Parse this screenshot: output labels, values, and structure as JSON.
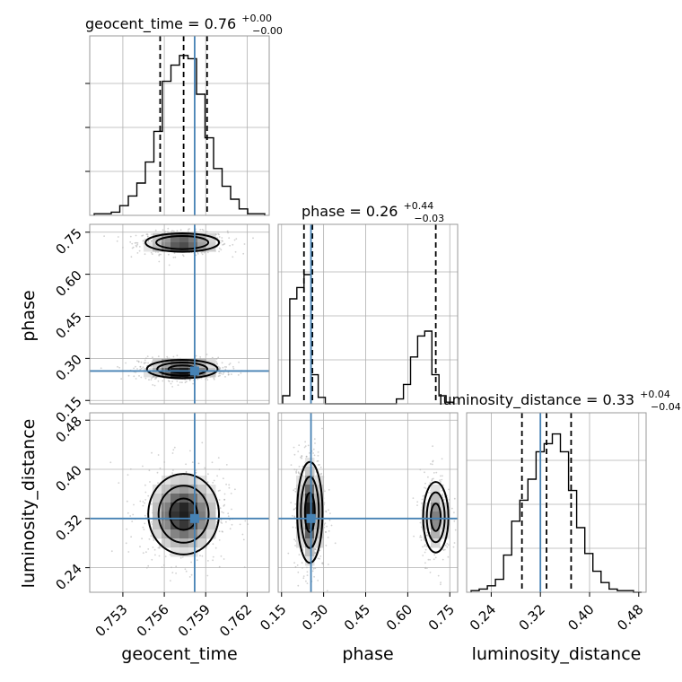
{
  "chart_data": {
    "type": "corner",
    "parameters": [
      "geocent_time",
      "phase",
      "luminosity_distance"
    ],
    "truths": {
      "geocent_time": 0.7582,
      "phase": 0.255,
      "luminosity_distance": 0.32
    },
    "truth_color": "#4682b4",
    "titles": [
      {
        "param": "geocent_time",
        "text": "geocent_time = 0.76",
        "sup": "+0.00",
        "sub": "−0.00"
      },
      {
        "param": "phase",
        "text": "phase = 0.26",
        "sup": "+0.44",
        "sub": "−0.03"
      },
      {
        "param": "luminosity_distance",
        "text": "luminosity_distance = 0.33",
        "sup": "+0.04",
        "sub": "−0.04"
      }
    ],
    "axis_labels": {
      "x": [
        "geocent_time",
        "phase",
        "luminosity_distance"
      ],
      "y": [
        "phase",
        "luminosity_distance"
      ]
    },
    "ticks": {
      "geocent_time": [
        "0.753",
        "0.756",
        "0.759",
        "0.762"
      ],
      "phase": [
        "0.15",
        "0.30",
        "0.45",
        "0.60",
        "0.75"
      ],
      "luminosity_distance": [
        "0.24",
        "0.32",
        "0.40",
        "0.48"
      ]
    },
    "ranges": {
      "geocent_time": [
        0.7506,
        0.7636
      ],
      "phase": [
        0.138,
        0.778
      ],
      "luminosity_distance": [
        0.2,
        0.492
      ]
    },
    "quantiles": {
      "geocent_time": [
        0.7557,
        0.7574,
        0.7591
      ],
      "phase": [
        0.23,
        0.26,
        0.7
      ],
      "luminosity_distance": [
        0.29,
        0.33,
        0.37
      ]
    },
    "histograms": {
      "geocent_time": [
        0.01,
        0.01,
        0.02,
        0.06,
        0.12,
        0.2,
        0.33,
        0.52,
        0.83,
        0.93,
        0.99,
        0.97,
        0.75,
        0.48,
        0.29,
        0.18,
        0.1,
        0.04,
        0.01,
        0.01
      ],
      "phase": [
        0.05,
        0.65,
        0.72,
        0.8,
        0.18,
        0.04,
        0,
        0,
        0,
        0,
        0,
        0,
        0,
        0,
        0,
        0,
        0.03,
        0.12,
        0.29,
        0.42,
        0.45,
        0.18,
        0.05,
        0.01
      ],
      "luminosity_distance": [
        0.01,
        0.02,
        0.04,
        0.08,
        0.23,
        0.44,
        0.57,
        0.7,
        0.87,
        0.92,
        0.98,
        0.87,
        0.63,
        0.4,
        0.24,
        0.13,
        0.06,
        0.02,
        0.01,
        0.01,
        0
      ]
    },
    "blobs": [
      {
        "x": "geocent_time",
        "y": "phase",
        "cx": 0.7573,
        "cy": 0.713,
        "sx": 0.0013,
        "sy": 0.016,
        "w": 0.9
      },
      {
        "x": "geocent_time",
        "y": "phase",
        "cx": 0.7573,
        "cy": 0.262,
        "sx": 0.00125,
        "sy": 0.016,
        "w": 1.0
      },
      {
        "x": "geocent_time",
        "y": "luminosity_distance",
        "cx": 0.7574,
        "cy": 0.327,
        "sx": 0.00125,
        "sy": 0.032,
        "w": 1.0
      },
      {
        "x": "phase",
        "y": "luminosity_distance",
        "cx": 0.251,
        "cy": 0.33,
        "sx": 0.022,
        "sy": 0.04,
        "w": 1.0
      },
      {
        "x": "phase",
        "y": "luminosity_distance",
        "cx": 0.7,
        "cy": 0.322,
        "sx": 0.022,
        "sy": 0.028,
        "w": 0.55
      }
    ]
  }
}
